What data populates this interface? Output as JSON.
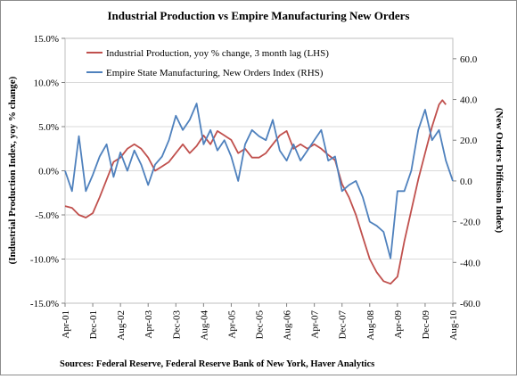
{
  "chart_data": {
    "type": "line",
    "title": "Industrial Production  vs Empire Manufacturing New Orders",
    "ylabel_left": "(Industrial Production Index, yoy % change)",
    "ylabel_right": "(New Orders Diffusion Index)",
    "source": "Sources:  Federal Reserve, Federal Reserve Bank of New York, Haver Analytics",
    "x_tick_labels": [
      "Apr-01",
      "Dec-01",
      "Aug-02",
      "Apr-03",
      "Dec-03",
      "Aug-04",
      "Apr-05",
      "Dec-05",
      "Aug-06",
      "Apr-07",
      "Dec-07",
      "Aug-08",
      "Apr-09",
      "Dec-09",
      "Aug-10"
    ],
    "x_start": "Apr-01",
    "x_end": "Aug-10",
    "ylim_left": [
      -15,
      15
    ],
    "ylim_left_step": 5,
    "ylim_left_tick_labels": [
      "15.0%",
      "10.0%",
      "5.0%",
      "0.0%",
      "-5.0%",
      "-10.0%",
      "-15.0%"
    ],
    "ylim_right": [
      -60,
      70
    ],
    "ylim_right_tick_labels": [
      "60.0",
      "40.0",
      "20.0",
      "0.0",
      "-20.0",
      "-40.0",
      "-60.0"
    ],
    "legend_placement": "top-left",
    "series": [
      {
        "name": "Industrial Production, yoy % change, 3 month lag (LHS)",
        "axis": "left",
        "color": "#c0504d",
        "points": [
          [
            "Apr-01",
            -4.0
          ],
          [
            "Jun-01",
            -4.2
          ],
          [
            "Aug-01",
            -5.0
          ],
          [
            "Oct-01",
            -5.3
          ],
          [
            "Dec-01",
            -4.8
          ],
          [
            "Feb-02",
            -3.0
          ],
          [
            "Apr-02",
            -1.0
          ],
          [
            "Jun-02",
            1.0
          ],
          [
            "Aug-02",
            1.5
          ],
          [
            "Oct-02",
            2.5
          ],
          [
            "Dec-02",
            3.0
          ],
          [
            "Feb-03",
            2.5
          ],
          [
            "Apr-03",
            1.5
          ],
          [
            "Jun-03",
            0.0
          ],
          [
            "Aug-03",
            0.5
          ],
          [
            "Oct-03",
            1.0
          ],
          [
            "Dec-03",
            2.0
          ],
          [
            "Feb-04",
            3.0
          ],
          [
            "Apr-04",
            2.0
          ],
          [
            "Jun-04",
            2.8
          ],
          [
            "Aug-04",
            4.0
          ],
          [
            "Oct-04",
            3.0
          ],
          [
            "Dec-04",
            4.5
          ],
          [
            "Feb-05",
            4.0
          ],
          [
            "Apr-05",
            3.5
          ],
          [
            "Jun-05",
            2.0
          ],
          [
            "Aug-05",
            2.5
          ],
          [
            "Oct-05",
            1.5
          ],
          [
            "Dec-05",
            1.5
          ],
          [
            "Feb-06",
            2.0
          ],
          [
            "Apr-06",
            3.0
          ],
          [
            "Jun-06",
            4.0
          ],
          [
            "Aug-06",
            4.5
          ],
          [
            "Oct-06",
            2.5
          ],
          [
            "Dec-06",
            3.0
          ],
          [
            "Feb-07",
            2.5
          ],
          [
            "Apr-07",
            3.0
          ],
          [
            "Jun-07",
            2.5
          ],
          [
            "Aug-07",
            1.8
          ],
          [
            "Oct-07",
            1.2
          ],
          [
            "Dec-07",
            -1.5
          ],
          [
            "Feb-08",
            -3.0
          ],
          [
            "Apr-08",
            -5.0
          ],
          [
            "Jun-08",
            -7.5
          ],
          [
            "Aug-08",
            -10.0
          ],
          [
            "Oct-08",
            -11.5
          ],
          [
            "Dec-08",
            -12.5
          ],
          [
            "Feb-09",
            -12.8
          ],
          [
            "Apr-09",
            -12.0
          ],
          [
            "Jun-09",
            -8.0
          ],
          [
            "Aug-09",
            -4.5
          ],
          [
            "Oct-09",
            -1.0
          ],
          [
            "Dec-09",
            2.0
          ],
          [
            "Feb-10",
            5.0
          ],
          [
            "Apr-10",
            7.5
          ],
          [
            "May-10",
            8.0
          ],
          [
            "Jun-10",
            7.5
          ]
        ]
      },
      {
        "name": "Empire State Manufacturing, New Orders Index (RHS)",
        "axis": "right",
        "color": "#4f81bd",
        "points": [
          [
            "Apr-01",
            5.0
          ],
          [
            "Jun-01",
            -5.0
          ],
          [
            "Aug-01",
            22.0
          ],
          [
            "Oct-01",
            -5.0
          ],
          [
            "Dec-01",
            3.0
          ],
          [
            "Feb-02",
            12.0
          ],
          [
            "Apr-02",
            18.0
          ],
          [
            "Jun-02",
            2.0
          ],
          [
            "Aug-02",
            14.0
          ],
          [
            "Oct-02",
            5.0
          ],
          [
            "Dec-02",
            15.0
          ],
          [
            "Feb-03",
            8.0
          ],
          [
            "Apr-03",
            -2.0
          ],
          [
            "Jun-03",
            8.0
          ],
          [
            "Aug-03",
            12.0
          ],
          [
            "Oct-03",
            20.0
          ],
          [
            "Dec-03",
            32.0
          ],
          [
            "Feb-04",
            25.0
          ],
          [
            "Apr-04",
            30.0
          ],
          [
            "Jun-04",
            38.0
          ],
          [
            "Aug-04",
            18.0
          ],
          [
            "Oct-04",
            25.0
          ],
          [
            "Dec-04",
            15.0
          ],
          [
            "Feb-05",
            20.0
          ],
          [
            "Apr-05",
            12.0
          ],
          [
            "Jun-05",
            0.0
          ],
          [
            "Aug-05",
            18.0
          ],
          [
            "Oct-05",
            25.0
          ],
          [
            "Dec-05",
            22.0
          ],
          [
            "Feb-06",
            20.0
          ],
          [
            "Apr-06",
            30.0
          ],
          [
            "Jun-06",
            15.0
          ],
          [
            "Aug-06",
            10.0
          ],
          [
            "Oct-06",
            18.0
          ],
          [
            "Dec-06",
            10.0
          ],
          [
            "Feb-07",
            15.0
          ],
          [
            "Apr-07",
            20.0
          ],
          [
            "Jun-07",
            25.0
          ],
          [
            "Aug-07",
            10.0
          ],
          [
            "Oct-07",
            12.0
          ],
          [
            "Dec-07",
            -5.0
          ],
          [
            "Feb-08",
            -2.0
          ],
          [
            "Apr-08",
            0.0
          ],
          [
            "Jun-08",
            -8.0
          ],
          [
            "Aug-08",
            -20.0
          ],
          [
            "Oct-08",
            -22.0
          ],
          [
            "Dec-08",
            -25.0
          ],
          [
            "Feb-09",
            -38.0
          ],
          [
            "Apr-09",
            -5.0
          ],
          [
            "Jun-09",
            -5.0
          ],
          [
            "Aug-09",
            5.0
          ],
          [
            "Oct-09",
            25.0
          ],
          [
            "Dec-09",
            35.0
          ],
          [
            "Feb-10",
            20.0
          ],
          [
            "Apr-10",
            25.0
          ],
          [
            "Jun-10",
            10.0
          ],
          [
            "Aug-10",
            0.0
          ]
        ]
      }
    ]
  }
}
